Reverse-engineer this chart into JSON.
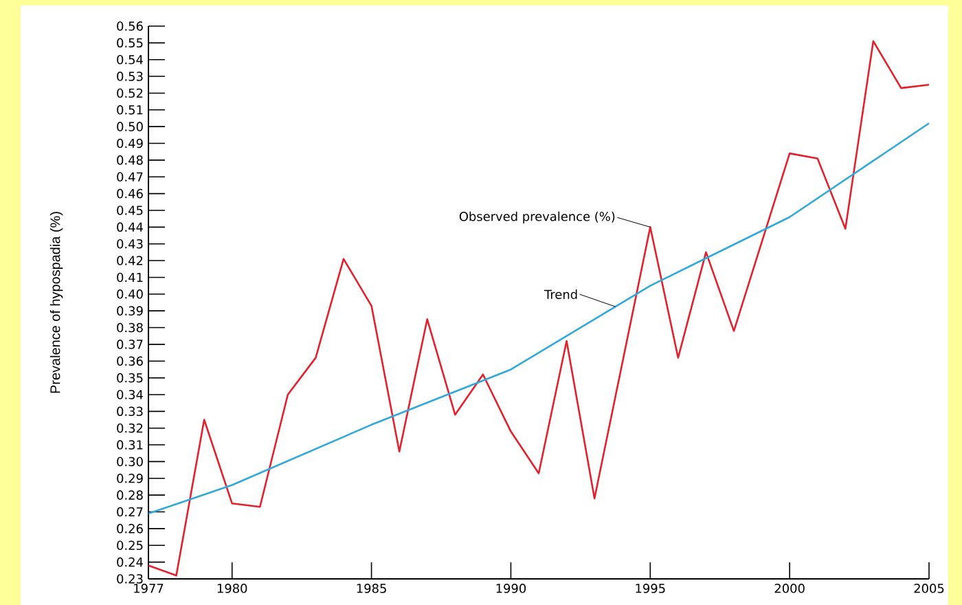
{
  "chart_data": {
    "type": "line",
    "ylabel": "Prevalence of hypospadia (%)",
    "series": [
      {
        "name": "Observed prevalence (%)",
        "color": "#e3202c",
        "x": [
          1977,
          1978,
          1979,
          1980,
          1981,
          1982,
          1983,
          1984,
          1985,
          1986,
          1987,
          1988,
          1989,
          1990,
          1991,
          1992,
          1993,
          1995,
          1996,
          1997,
          1998,
          2000,
          2001,
          2002,
          2003,
          2004,
          2005
        ],
        "values": [
          0.238,
          0.232,
          0.325,
          0.275,
          0.273,
          0.34,
          0.362,
          0.421,
          0.393,
          0.306,
          0.385,
          0.328,
          0.352,
          0.318,
          0.293,
          0.372,
          0.278,
          0.44,
          0.362,
          0.425,
          0.378,
          0.484,
          0.481,
          0.439,
          0.551,
          0.523,
          0.525
        ]
      },
      {
        "name": "Trend",
        "color": "#2fa9dc",
        "x": [
          1977,
          1980,
          1985,
          1990,
          1995,
          2000,
          2005
        ],
        "values": [
          0.269,
          0.286,
          0.322,
          0.355,
          0.405,
          0.446,
          0.502
        ]
      }
    ],
    "xlim": [
      1977,
      2005
    ],
    "xticks": [
      1977,
      1980,
      1985,
      1990,
      1995,
      2000,
      2005
    ],
    "ylim": [
      0.23,
      0.56
    ],
    "yticks": [
      0.23,
      0.24,
      0.25,
      0.26,
      0.27,
      0.28,
      0.29,
      {
        "value": 0.3,
        "label": "0.30"
      },
      0.31,
      0.32,
      0.33,
      0.34,
      0.35,
      0.36,
      0.37,
      0.38,
      0.39,
      {
        "value": 0.4,
        "label": "0.40"
      },
      0.41,
      0.42,
      0.43,
      0.44,
      0.45,
      0.46,
      0.47,
      0.48,
      0.49,
      {
        "value": 0.5,
        "label": "0.50"
      },
      0.51,
      0.52,
      0.53,
      0.54,
      0.55,
      0.56
    ]
  }
}
